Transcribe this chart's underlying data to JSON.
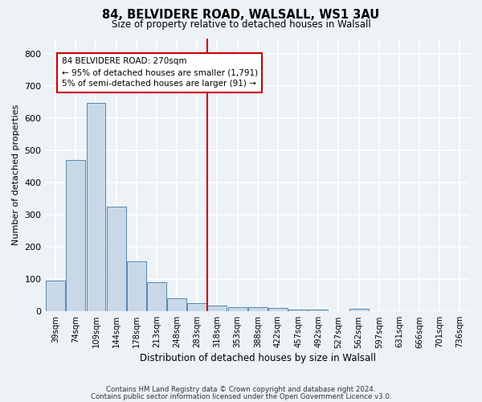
{
  "title1": "84, BELVIDERE ROAD, WALSALL, WS1 3AU",
  "title2": "Size of property relative to detached houses in Walsall",
  "xlabel": "Distribution of detached houses by size in Walsall",
  "ylabel": "Number of detached properties",
  "bar_color": "#c8d8e8",
  "bar_edge_color": "#5588aa",
  "categories": [
    "39sqm",
    "74sqm",
    "109sqm",
    "144sqm",
    "178sqm",
    "213sqm",
    "248sqm",
    "283sqm",
    "318sqm",
    "353sqm",
    "388sqm",
    "422sqm",
    "457sqm",
    "492sqm",
    "527sqm",
    "562sqm",
    "597sqm",
    "631sqm",
    "666sqm",
    "701sqm",
    "736sqm"
  ],
  "values": [
    95,
    470,
    648,
    325,
    157,
    92,
    40,
    25,
    18,
    13,
    14,
    12,
    7,
    5,
    0,
    8,
    0,
    0,
    0,
    0,
    0
  ],
  "ylim": [
    0,
    850
  ],
  "yticks": [
    0,
    100,
    200,
    300,
    400,
    500,
    600,
    700,
    800
  ],
  "vline_x": 7.5,
  "vline_color": "#cc0000",
  "annotation_text": "84 BELVIDERE ROAD: 270sqm\n← 95% of detached houses are smaller (1,791)\n5% of semi-detached houses are larger (91) →",
  "annotation_box_color": "#ffffff",
  "annotation_box_edge": "#cc0000",
  "footer1": "Contains HM Land Registry data © Crown copyright and database right 2024.",
  "footer2": "Contains public sector information licensed under the Open Government Licence v3.0.",
  "background_color": "#edf2f7",
  "grid_color": "#ffffff"
}
